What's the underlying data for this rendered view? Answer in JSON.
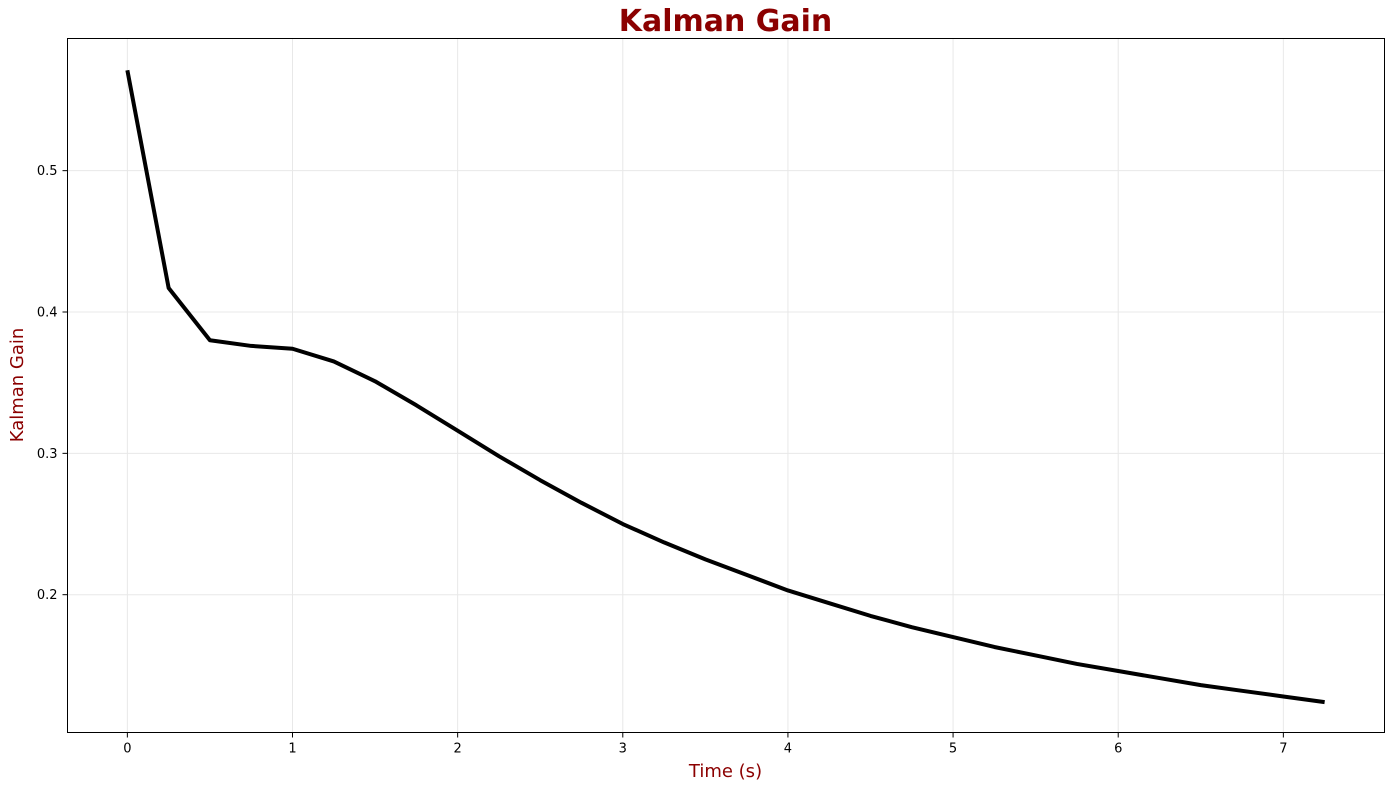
{
  "chart_data": {
    "type": "line",
    "title": "Kalman Gain",
    "xlabel": "Time (s)",
    "ylabel": "Kalman Gain",
    "xlim": [
      -0.3625,
      7.6125
    ],
    "ylim": [
      0.1025,
      0.5935
    ],
    "xticks": [
      0,
      1,
      2,
      3,
      4,
      5,
      6,
      7
    ],
    "yticks": [
      0.2,
      0.3,
      0.4,
      0.5
    ],
    "grid": true,
    "colors": {
      "title": "#8b0000",
      "axis_label": "#8b0000",
      "line": "#000000"
    },
    "series": [
      {
        "x": [
          0,
          0.25,
          0.5,
          0.75,
          1.0,
          1.25,
          1.5,
          1.75,
          2.0,
          2.25,
          2.5,
          2.75,
          3.0,
          3.25,
          3.5,
          3.75,
          4.0,
          4.25,
          4.5,
          4.75,
          5.0,
          5.25,
          5.5,
          5.75,
          6.0,
          6.25,
          6.5,
          6.75,
          7.0,
          7.25
        ],
        "values": [
          0.571,
          0.417,
          0.38,
          0.376,
          0.374,
          0.365,
          0.351,
          0.334,
          0.316,
          0.298,
          0.281,
          0.265,
          0.25,
          0.237,
          0.225,
          0.214,
          0.203,
          0.194,
          0.185,
          0.177,
          0.17,
          0.163,
          0.157,
          0.151,
          0.146,
          0.141,
          0.136,
          0.132,
          0.128,
          0.124
        ]
      }
    ]
  }
}
